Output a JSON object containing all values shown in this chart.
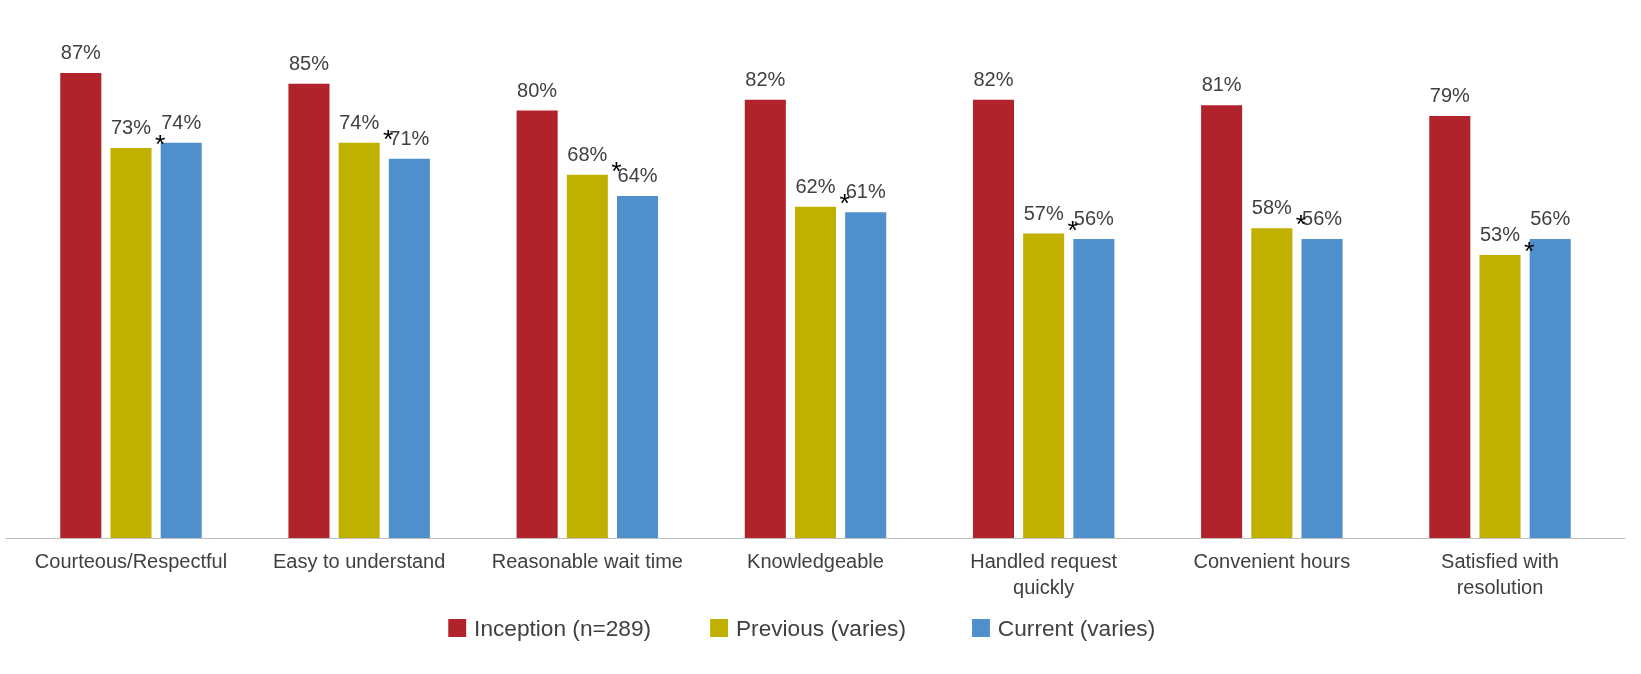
{
  "chart_data": {
    "type": "bar",
    "categories": [
      "Courteous/Respectful",
      "Easy to understand",
      "Reasonable wait time",
      "Knowledgeable",
      "Handled request quickly",
      "Convenient hours",
      "Satisfied with resolution"
    ],
    "series": [
      {
        "name": "Inception (n=289)",
        "color": "#b0232a",
        "values": [
          87,
          85,
          80,
          82,
          82,
          81,
          79
        ],
        "value_labels": [
          "87%",
          "85%",
          "80%",
          "82%",
          "82%",
          "81%",
          "79%"
        ]
      },
      {
        "name": "Previous (varies)",
        "color": "#c0b000",
        "values": [
          73,
          74,
          68,
          62,
          57,
          58,
          53
        ],
        "value_labels": [
          "73%",
          "74%",
          "68%",
          "62%",
          "57%",
          "58%",
          "53%"
        ]
      },
      {
        "name": "Current (varies)",
        "color": "#4f90cc",
        "values": [
          74,
          71,
          64,
          61,
          56,
          56,
          56
        ],
        "value_labels": [
          "74%",
          "71%",
          "64%",
          "61%",
          "56%",
          "56%",
          "56%"
        ]
      }
    ],
    "annotations": [
      {
        "text": "*",
        "x": "Courteous/Respectful",
        "y": 73
      },
      {
        "text": "*",
        "x": "Easy to understand",
        "y": 74
      },
      {
        "text": "*",
        "x": "Reasonable wait time",
        "y": 68
      },
      {
        "text": "*",
        "x": "Knowledgeable",
        "y": 62
      },
      {
        "text": "*",
        "x": "Handled request quickly",
        "y": 57
      },
      {
        "text": "*",
        "x": "Convenient hours",
        "y": 58
      },
      {
        "text": "*",
        "x": "Satisfied with resolution",
        "y": 53
      }
    ],
    "tick_labels": "x",
    "grid": false,
    "legend": "bottom"
  }
}
